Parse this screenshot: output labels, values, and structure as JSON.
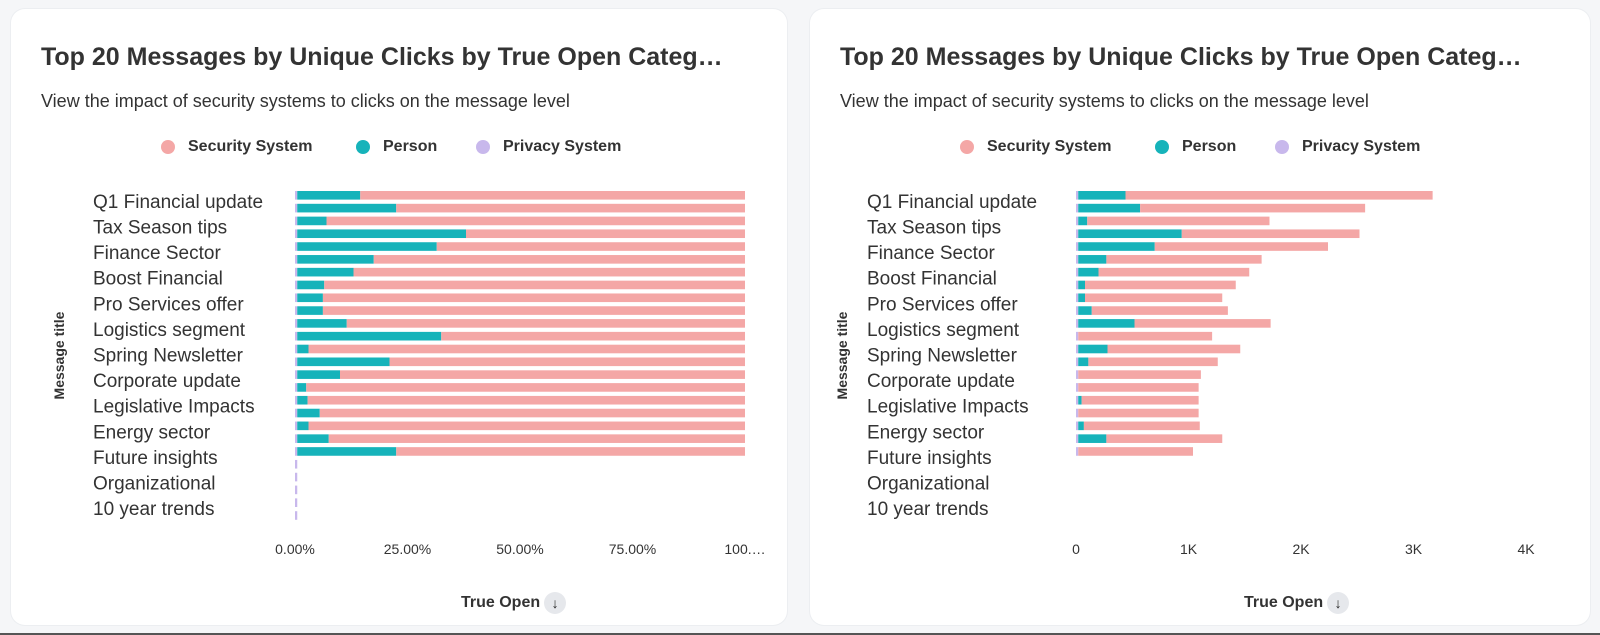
{
  "colors": {
    "security": "#f4a7a6",
    "person": "#16b3ba",
    "privacy": "#c8b8ec"
  },
  "legend": [
    {
      "label": "Security System",
      "color": "#f4a7a6"
    },
    {
      "label": "Person",
      "color": "#16b3ba"
    },
    {
      "label": "Privacy System",
      "color": "#c8b8ec"
    }
  ],
  "chart_data": [
    {
      "type": "bar",
      "stacked": true,
      "orientation": "horizontal",
      "normalized": true,
      "title": "Top 20 Messages by Unique Clicks by True Open Categ…",
      "subtitle": "View the impact of security systems to clicks on the message level",
      "ylabel": "Message title",
      "xlabel": "True Open",
      "xlim": [
        0,
        100
      ],
      "xticks": [
        "0.00%",
        "25.00%",
        "50.00%",
        "75.00%",
        "100.…"
      ],
      "categories": [
        "Q1 Financial update",
        "",
        "Tax Season tips",
        "",
        "Finance Sector",
        "",
        "Boost Financial",
        "",
        "Pro Services offer",
        "",
        "Logistics segment",
        "",
        "Spring Newsletter",
        "",
        "Corporate update",
        "",
        "Legislative Impacts",
        "",
        "Energy sector",
        "",
        "Future insights",
        "",
        "Organizational",
        "",
        "10 year trends",
        ""
      ],
      "series": [
        {
          "name": "Privacy System",
          "values": [
            0.5,
            0.5,
            0.5,
            0.5,
            0.5,
            0.5,
            0.5,
            0.5,
            0.5,
            0.5,
            0.5,
            0.5,
            0.5,
            0.5,
            0.5,
            0.5,
            0.5,
            0.5,
            0.5,
            0.5,
            0.5,
            0.5,
            0.5,
            0.5,
            0.5,
            0.5
          ]
        },
        {
          "name": "Person",
          "values": [
            14,
            22,
            6.5,
            37.5,
            31,
            17,
            12.5,
            6,
            5.7,
            5.7,
            11,
            32,
            2.5,
            20.5,
            9.5,
            2,
            2.3,
            5,
            2.5,
            7,
            22,
            0,
            0,
            0,
            0,
            0
          ]
        },
        {
          "name": "Security System",
          "values": [
            85.5,
            77.5,
            93,
            62,
            68.5,
            82.5,
            87,
            93.5,
            93.8,
            93.8,
            88.5,
            67.5,
            97,
            79,
            90,
            97.5,
            97.2,
            94.5,
            97,
            92.5,
            77.5,
            0,
            0,
            0,
            0,
            0
          ]
        }
      ]
    },
    {
      "type": "bar",
      "stacked": true,
      "orientation": "horizontal",
      "title": "Top 20 Messages by Unique Clicks by True Open Categ…",
      "subtitle": "View the impact of security systems to clicks on the message level",
      "ylabel": "Message title",
      "xlabel": "True Open",
      "xlim": [
        0,
        4000
      ],
      "xticks": [
        "0",
        "1K",
        "2K",
        "3K",
        "4K"
      ],
      "categories": [
        "Q1 Financial update",
        "",
        "Tax Season tips",
        "",
        "Finance Sector",
        "",
        "Boost Financial",
        "",
        "Pro Services offer",
        "",
        "Logistics segment",
        "",
        "Spring Newsletter",
        "",
        "Corporate update",
        "",
        "Legislative Impacts",
        "",
        "Energy sector",
        "",
        "Future insights",
        "",
        "Organizational",
        "",
        "10 year trends",
        ""
      ],
      "series": [
        {
          "name": "Privacy System",
          "values": [
            20,
            20,
            20,
            20,
            20,
            20,
            20,
            20,
            20,
            20,
            20,
            20,
            20,
            20,
            20,
            20,
            20,
            20,
            20,
            20,
            20,
            0,
            0,
            0,
            0,
            0
          ]
        },
        {
          "name": "Person",
          "values": [
            420,
            550,
            80,
            920,
            680,
            250,
            180,
            60,
            60,
            120,
            500,
            0,
            260,
            90,
            0,
            0,
            30,
            0,
            50,
            250,
            0,
            0,
            0,
            0,
            0,
            0
          ]
        },
        {
          "name": "Security System",
          "values": [
            2730,
            2000,
            1620,
            1580,
            1540,
            1380,
            1340,
            1340,
            1220,
            1210,
            1210,
            1190,
            1180,
            1150,
            1090,
            1070,
            1040,
            1070,
            1030,
            1030,
            1020,
            0,
            0,
            0,
            0,
            0
          ]
        }
      ]
    }
  ],
  "left": {
    "title": "Top 20 Messages by Unique Clicks by True Open Categ…",
    "subtitle": "View the impact of security systems to clicks on the message level",
    "xaxis_title": "True Open",
    "yaxis_title": "Message title",
    "sort_icon": "arrow-down-icon"
  },
  "right": {
    "title": "Top 20 Messages by Unique Clicks by True Open Categ…",
    "subtitle": "View the impact of security systems to clicks on the message level",
    "xaxis_title": "True Open",
    "yaxis_title": "Message title",
    "sort_icon": "arrow-down-icon"
  }
}
